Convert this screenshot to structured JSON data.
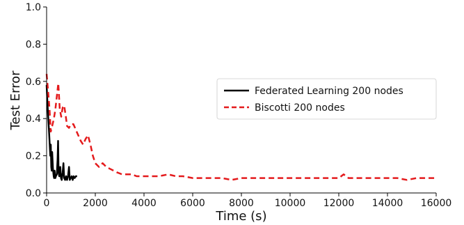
{
  "chart_data": {
    "type": "line",
    "title": "",
    "xlabel": "Time (s)",
    "ylabel": "Test Error",
    "xlim": [
      0,
      16000
    ],
    "ylim": [
      0,
      1.0
    ],
    "x_ticks": [
      0,
      2000,
      4000,
      6000,
      8000,
      10000,
      12000,
      14000,
      16000
    ],
    "y_ticks": [
      0.0,
      0.2,
      0.4,
      0.6,
      0.8,
      1.0
    ],
    "x_tick_labels": [
      "0",
      "2000",
      "4000",
      "6000",
      "8000",
      "10000",
      "12000",
      "14000",
      "16000"
    ],
    "y_tick_labels": [
      "0.0",
      "0.2",
      "0.4",
      "0.6",
      "0.8",
      "1.0"
    ],
    "grid": false,
    "legend_position": "center-right",
    "series": [
      {
        "name": "Federated Learning 200 nodes",
        "color": "#000000",
        "style": "solid",
        "points": [
          [
            0,
            0.58
          ],
          [
            30,
            0.5
          ],
          [
            60,
            0.42
          ],
          [
            90,
            0.35
          ],
          [
            120,
            0.28
          ],
          [
            150,
            0.2
          ],
          [
            170,
            0.26
          ],
          [
            190,
            0.14
          ],
          [
            210,
            0.12
          ],
          [
            230,
            0.22
          ],
          [
            260,
            0.13
          ],
          [
            290,
            0.09
          ],
          [
            310,
            0.08
          ],
          [
            330,
            0.12
          ],
          [
            360,
            0.08
          ],
          [
            380,
            0.09
          ],
          [
            420,
            0.1
          ],
          [
            450,
            0.18
          ],
          [
            470,
            0.28
          ],
          [
            490,
            0.11
          ],
          [
            520,
            0.09
          ],
          [
            560,
            0.14
          ],
          [
            590,
            0.08
          ],
          [
            620,
            0.07
          ],
          [
            660,
            0.11
          ],
          [
            690,
            0.16
          ],
          [
            720,
            0.08
          ],
          [
            760,
            0.07
          ],
          [
            800,
            0.09
          ],
          [
            840,
            0.07
          ],
          [
            880,
            0.09
          ],
          [
            920,
            0.14
          ],
          [
            950,
            0.07
          ],
          [
            990,
            0.08
          ],
          [
            1030,
            0.09
          ],
          [
            1070,
            0.07
          ],
          [
            1110,
            0.09
          ],
          [
            1150,
            0.08
          ],
          [
            1200,
            0.09
          ],
          [
            1250,
            0.09
          ]
        ]
      },
      {
        "name": "Biscotti 200 nodes",
        "color": "#e41a1c",
        "style": "dashed",
        "points": [
          [
            0,
            0.64
          ],
          [
            60,
            0.55
          ],
          [
            120,
            0.45
          ],
          [
            170,
            0.33
          ],
          [
            230,
            0.36
          ],
          [
            300,
            0.4
          ],
          [
            360,
            0.45
          ],
          [
            420,
            0.52
          ],
          [
            480,
            0.59
          ],
          [
            540,
            0.45
          ],
          [
            600,
            0.41
          ],
          [
            660,
            0.46
          ],
          [
            720,
            0.47
          ],
          [
            780,
            0.42
          ],
          [
            840,
            0.36
          ],
          [
            920,
            0.35
          ],
          [
            1000,
            0.37
          ],
          [
            1100,
            0.37
          ],
          [
            1200,
            0.34
          ],
          [
            1300,
            0.31
          ],
          [
            1400,
            0.28
          ],
          [
            1500,
            0.26
          ],
          [
            1600,
            0.29
          ],
          [
            1700,
            0.31
          ],
          [
            1800,
            0.26
          ],
          [
            1900,
            0.2
          ],
          [
            2000,
            0.16
          ],
          [
            2150,
            0.14
          ],
          [
            2300,
            0.16
          ],
          [
            2450,
            0.14
          ],
          [
            2600,
            0.13
          ],
          [
            2750,
            0.12
          ],
          [
            2900,
            0.11
          ],
          [
            3100,
            0.1
          ],
          [
            3300,
            0.1
          ],
          [
            3500,
            0.1
          ],
          [
            3700,
            0.09
          ],
          [
            4000,
            0.09
          ],
          [
            4300,
            0.09
          ],
          [
            4600,
            0.09
          ],
          [
            5000,
            0.1
          ],
          [
            5300,
            0.09
          ],
          [
            5600,
            0.09
          ],
          [
            6000,
            0.08
          ],
          [
            6400,
            0.08
          ],
          [
            6800,
            0.08
          ],
          [
            7200,
            0.08
          ],
          [
            7600,
            0.07
          ],
          [
            8000,
            0.08
          ],
          [
            8400,
            0.08
          ],
          [
            8800,
            0.08
          ],
          [
            9200,
            0.08
          ],
          [
            9600,
            0.08
          ],
          [
            10000,
            0.08
          ],
          [
            10400,
            0.08
          ],
          [
            10800,
            0.08
          ],
          [
            11200,
            0.08
          ],
          [
            11600,
            0.08
          ],
          [
            12000,
            0.08
          ],
          [
            12200,
            0.1
          ],
          [
            12400,
            0.08
          ],
          [
            12800,
            0.08
          ],
          [
            13200,
            0.08
          ],
          [
            13600,
            0.08
          ],
          [
            14000,
            0.08
          ],
          [
            14400,
            0.08
          ],
          [
            14800,
            0.07
          ],
          [
            15200,
            0.08
          ],
          [
            15600,
            0.08
          ],
          [
            16000,
            0.08
          ]
        ]
      }
    ]
  }
}
